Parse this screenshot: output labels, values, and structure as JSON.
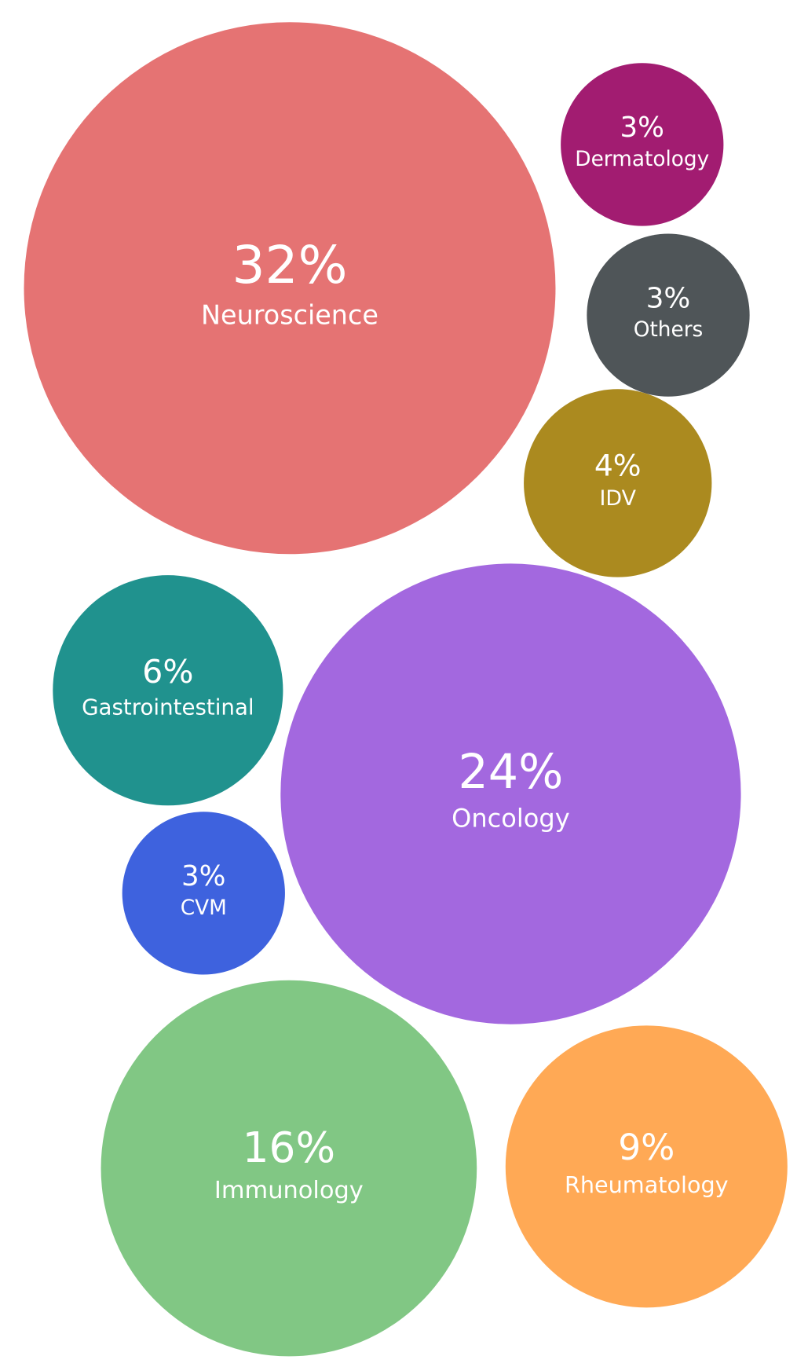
{
  "chart_data": {
    "type": "bubble",
    "categories": [
      "Neuroscience",
      "Dermatology",
      "Others",
      "IDV",
      "Gastrointestinal",
      "Oncology",
      "CVM",
      "Immunology",
      "Rheumatology"
    ],
    "values": [
      32,
      3,
      3,
      4,
      6,
      24,
      3,
      16,
      9
    ],
    "value_labels": [
      "32%",
      "3%",
      "3%",
      "4%",
      "6%",
      "24%",
      "3%",
      "16%",
      "9%"
    ],
    "colors": [
      "#e57373",
      "#a21c71",
      "#4f5558",
      "#ab8a1f",
      "#20928e",
      "#a368df",
      "#3e62de",
      "#81c784",
      "#ffa955"
    ]
  }
}
